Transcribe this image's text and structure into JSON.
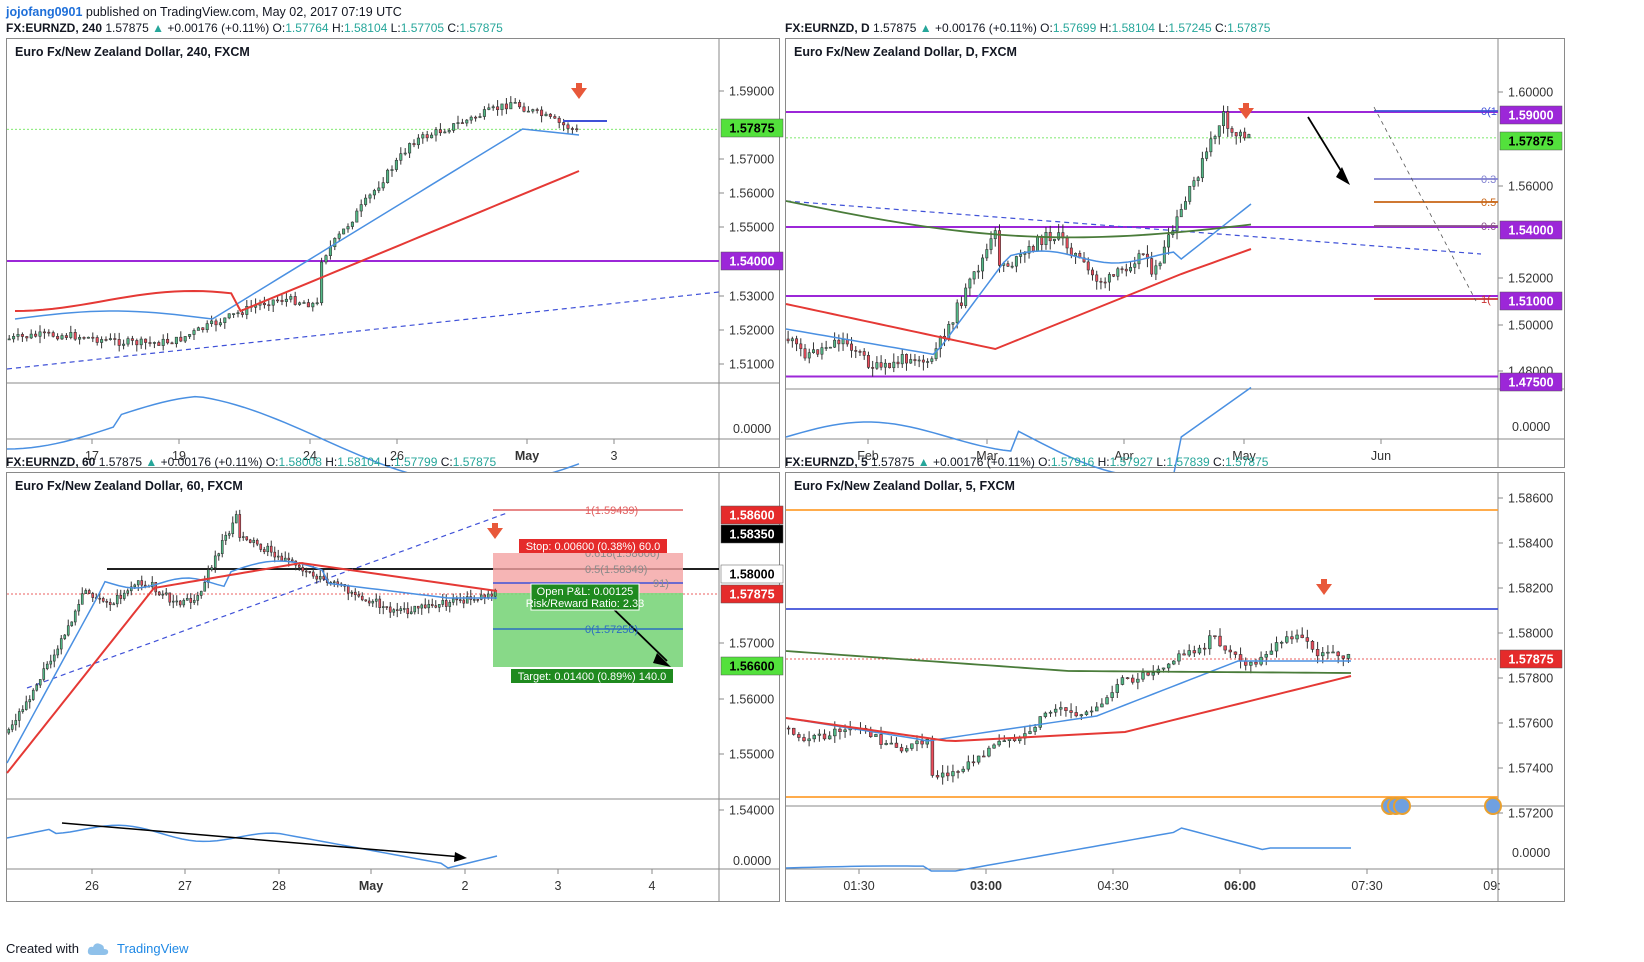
{
  "header": {
    "user": "jojofang0901",
    "published": "published on TradingView.com, May 02, 2017 07:19 UTC"
  },
  "footer": {
    "created": "Created with",
    "brand": "TradingView"
  },
  "colors": {
    "up": "#26a69a",
    "down": "#ef5350",
    "candle_up": "#53b987",
    "candle_down": "#eb4d5c",
    "ma_fast": "#4a90e2",
    "ma_slow": "#e53935",
    "ma_long": "#4a7c3a",
    "level": "#9c27d8",
    "trend": "#3f51d8"
  },
  "charts": [
    {
      "id": "p1",
      "symbol": "FX:EURNZD, 240",
      "price": "1.57875",
      "change": "+0.00176 (+0.11%)",
      "O": "1.57764",
      "H": "1.58104",
      "L": "1.57705",
      "C": "1.57875",
      "title": "Euro Fx/New Zealand Dollar, 240, FXCM",
      "price_labels": [
        "1.59000",
        "1.57000",
        "1.56000",
        "1.55000",
        "1.53000",
        "1.52000",
        "1.51000"
      ],
      "badges": [
        {
          "text": "1.57875",
          "bg": "#53e13c",
          "fg": "#000000"
        },
        {
          "text": "1.54000",
          "bg": "#9c27d8",
          "fg": "#ffffff"
        }
      ],
      "osc_label": "0.0000",
      "time_labels": [
        "17",
        "19",
        "24",
        "26",
        "May",
        "3"
      ]
    },
    {
      "id": "p2",
      "symbol": "FX:EURNZD, D",
      "price": "1.57875",
      "change": "+0.00176 (+0.11%)",
      "O": "1.57699",
      "H": "1.58104",
      "L": "1.57245",
      "C": "1.57875",
      "title": "Euro Fx/New Zealand Dollar, D, FXCM",
      "price_labels": [
        "1.60000",
        "1.56000",
        "1.52000",
        "1.50000",
        "1.48000"
      ],
      "badges": [
        {
          "text": "1.59000",
          "bg": "#9c27d8",
          "fg": "#ffffff"
        },
        {
          "text": "1.57875",
          "bg": "#53e13c",
          "fg": "#000000"
        },
        {
          "text": "1.54000",
          "bg": "#9c27d8",
          "fg": "#ffffff"
        },
        {
          "text": "1.51000",
          "bg": "#9c27d8",
          "fg": "#ffffff"
        },
        {
          "text": "1.47500",
          "bg": "#9c27d8",
          "fg": "#ffffff"
        }
      ],
      "fib_labels": [
        "0(1",
        "0.3",
        "0.5",
        "0.6",
        "1("
      ],
      "osc_label": "0.0000",
      "time_labels": [
        "Feb",
        "Mar",
        "Apr",
        "May",
        "Jun"
      ]
    },
    {
      "id": "p3",
      "symbol": "FX:EURNZD, 60",
      "price": "1.57875",
      "change": "+0.00176 (+0.11%)",
      "O": "1.58008",
      "H": "1.58104",
      "L": "1.57799",
      "C": "1.57875",
      "title": "Euro Fx/New Zealand Dollar, 60, FXCM",
      "price_labels": [
        "1.57000",
        "1.56000",
        "1.55000",
        "1.54000"
      ],
      "badges": [
        {
          "text": "1.58600",
          "bg": "#e52b2b",
          "fg": "#ffffff"
        },
        {
          "text": "1.58350",
          "bg": "#000000",
          "fg": "#ffffff"
        },
        {
          "text": "1.58000",
          "bg": "#ffffff",
          "fg": "#000000"
        },
        {
          "text": "1.57875",
          "bg": "#e52b2b",
          "fg": "#ffffff"
        },
        {
          "text": "1.56600",
          "bg": "#53e13c",
          "fg": "#000000"
        }
      ],
      "fib_labels": [
        "1(1.59439)",
        "0.618(1.58606)",
        "0.5(1.58349)",
        "91)",
        "0(1.57258)"
      ],
      "stop_label": "Stop: 0.00600 (0.38%) 60.0",
      "pnl_label": "Open P&L: 0.00125",
      "rr_label": "Risk/Reward Ratio: 2.33",
      "target_label": "Target: 0.01400 (0.89%) 140.0",
      "osc_label": "0.0000",
      "time_labels": [
        "26",
        "27",
        "28",
        "May",
        "2",
        "3",
        "4"
      ]
    },
    {
      "id": "p4",
      "symbol": "FX:EURNZD, 5",
      "price": "1.57875",
      "change": "+0.00176 (+0.11%)",
      "O": "1.57916",
      "H": "1.57927",
      "L": "1.57839",
      "C": "1.57875",
      "title": "Euro Fx/New Zealand Dollar, 5, FXCM",
      "price_labels": [
        "1.58600",
        "1.58400",
        "1.58200",
        "1.58000",
        "1.57800",
        "1.57600",
        "1.57400",
        "1.57200"
      ],
      "badges": [
        {
          "text": "1.57875",
          "bg": "#e52b2b",
          "fg": "#ffffff"
        }
      ],
      "osc_label": "0.0000",
      "time_labels": [
        "01:30",
        "03:00",
        "04:30",
        "06:00",
        "07:30",
        "09:"
      ]
    }
  ]
}
